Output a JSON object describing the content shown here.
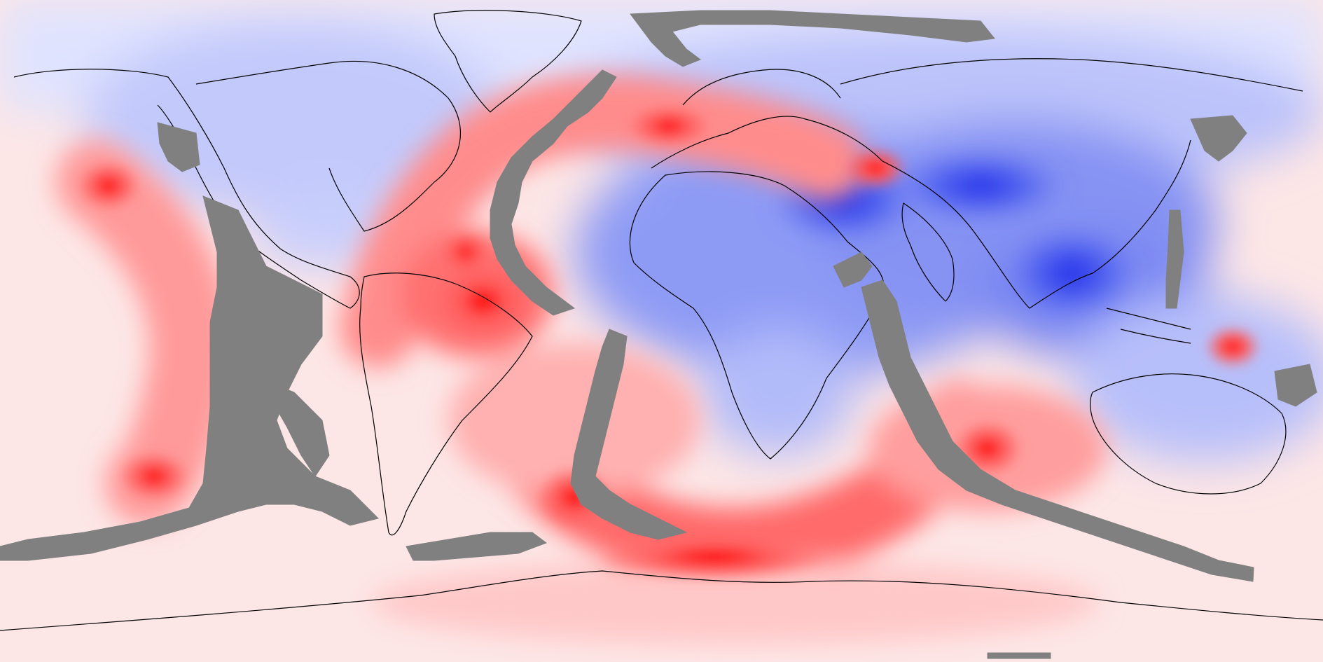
{
  "map": {
    "projection": "equirectangular",
    "extent": {
      "lon": [
        -180,
        180
      ],
      "lat": [
        -90,
        90
      ]
    },
    "colormap": {
      "type": "diverging",
      "negative_color": "#0000ff",
      "neutral_color": "#ffffff",
      "positive_color": "#ff0000",
      "masked_color": "#808080"
    },
    "land_outline_color": "#000000",
    "positive_regions": [
      {
        "name": "north-atlantic-band"
      },
      {
        "name": "british-isles"
      },
      {
        "name": "caspian-region"
      },
      {
        "name": "amazon-basin"
      },
      {
        "name": "southern-ocean-arc"
      },
      {
        "name": "southeast-pacific-arc"
      },
      {
        "name": "south-indian-ocean"
      },
      {
        "name": "western-pacific-warm-pool"
      }
    ],
    "negative_regions": [
      {
        "name": "arctic-north-america"
      },
      {
        "name": "north-africa-middle-east"
      },
      {
        "name": "asia"
      },
      {
        "name": "maritime-continent"
      },
      {
        "name": "australia"
      }
    ],
    "masked_regions": [
      {
        "name": "east-pacific-mask"
      },
      {
        "name": "mid-atlantic-ridge-mask"
      },
      {
        "name": "south-atlantic-mask"
      },
      {
        "name": "indian-ocean-ridge-mask"
      },
      {
        "name": "kamchatka-mask"
      }
    ]
  }
}
